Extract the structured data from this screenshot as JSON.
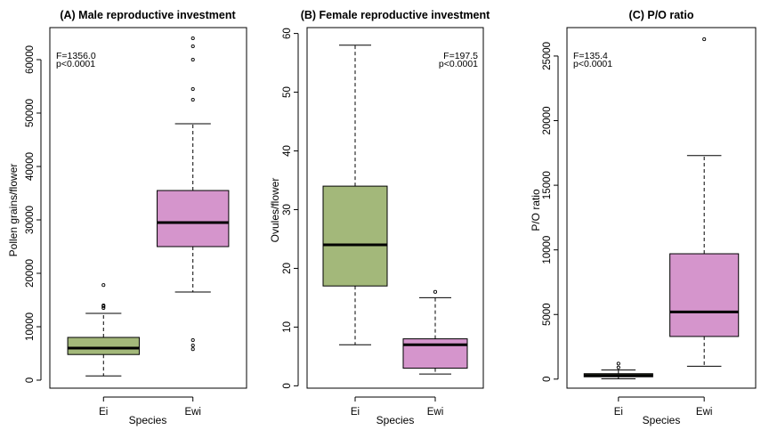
{
  "colors": {
    "Ei": "#a3b87a",
    "Ewi": "#d595cc",
    "frame": "#000000"
  },
  "chart_data": [
    {
      "type": "box",
      "title": "(A) Male reproductive investment",
      "xlabel": "Species",
      "ylabel": "Pollen grains/flower",
      "categories": [
        "Ei",
        "Ewi"
      ],
      "ylim": [
        -1500,
        66000
      ],
      "yticks": [
        0,
        10000,
        20000,
        30000,
        40000,
        50000,
        60000
      ],
      "stat_text": [
        "F=1356.0",
        "p<0.0001"
      ],
      "stat_pos": "top-left",
      "boxes": [
        {
          "name": "Ei",
          "min": 800,
          "q1": 4800,
          "median": 6000,
          "q3": 8000,
          "max": 12500,
          "outliers": [
            13500,
            13800,
            14000,
            17800
          ]
        },
        {
          "name": "Ewi",
          "min": 16500,
          "q1": 25000,
          "median": 29500,
          "q3": 35500,
          "max": 48000,
          "outliers": [
            5800,
            6500,
            7500,
            52500,
            54500,
            60000,
            62500,
            64000
          ]
        }
      ]
    },
    {
      "type": "box",
      "title": "(B) Female reproductive investment",
      "xlabel": "Species",
      "ylabel": "Ovules/flower",
      "categories": [
        "Ei",
        "Ewi"
      ],
      "ylim": [
        -0.4,
        61
      ],
      "yticks": [
        0,
        10,
        20,
        30,
        40,
        50,
        60
      ],
      "stat_text": [
        "F=197.5",
        "p<0.0001"
      ],
      "stat_pos": "top-right",
      "boxes": [
        {
          "name": "Ei",
          "min": 7,
          "q1": 17,
          "median": 24,
          "q3": 34,
          "max": 58,
          "outliers": []
        },
        {
          "name": "Ewi",
          "min": 2,
          "q1": 3,
          "median": 7,
          "q3": 8,
          "max": 15,
          "outliers": [
            16
          ]
        }
      ]
    },
    {
      "type": "box",
      "title": "(C) P/O ratio",
      "xlabel": "Species",
      "ylabel": "P/O ratio",
      "categories": [
        "Ei",
        "Ewi"
      ],
      "ylim": [
        -700,
        27200
      ],
      "yticks": [
        0,
        5000,
        10000,
        15000,
        20000,
        25000
      ],
      "stat_text": [
        "F=135.4",
        "p<0.0001"
      ],
      "stat_pos": "top-left",
      "boxes": [
        {
          "name": "Ei",
          "min": 20,
          "q1": 180,
          "median": 280,
          "q3": 420,
          "max": 700,
          "outliers": [
            900,
            1200
          ]
        },
        {
          "name": "Ewi",
          "min": 1000,
          "q1": 3300,
          "median": 5200,
          "q3": 9700,
          "max": 17300,
          "outliers": [
            26300
          ]
        }
      ]
    }
  ]
}
